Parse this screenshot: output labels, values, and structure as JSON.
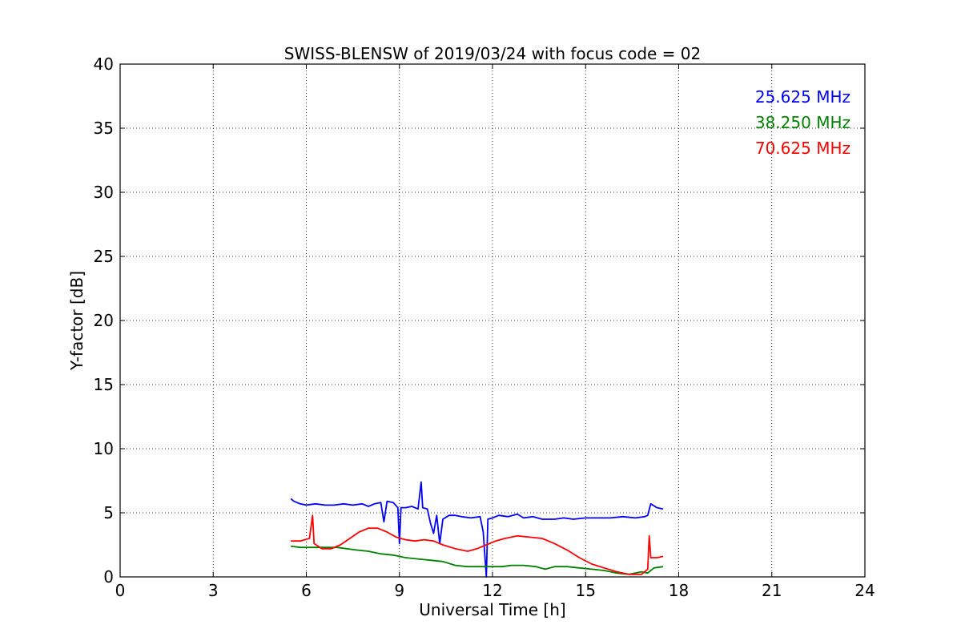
{
  "chart_data": {
    "type": "line",
    "title": "SWISS-BLENSW of 2019/03/24 with focus code = 02",
    "xlabel": "Universal Time [h]",
    "ylabel": "Y-factor [dB]",
    "xlim": [
      0,
      24
    ],
    "ylim": [
      0,
      40
    ],
    "xticks": [
      0,
      3,
      6,
      9,
      12,
      15,
      18,
      21,
      24
    ],
    "yticks": [
      0,
      5,
      10,
      15,
      20,
      25,
      30,
      35,
      40
    ],
    "xtick_labels": [
      "0",
      "3",
      "6",
      "9",
      "12",
      "15",
      "18",
      "21",
      "24"
    ],
    "ytick_labels": [
      "0",
      "5",
      "10",
      "15",
      "20",
      "25",
      "30",
      "35",
      "40"
    ],
    "grid": true,
    "legend_position": "top-right",
    "series": [
      {
        "name": "25.625 MHz",
        "color": "#0000ff",
        "points": [
          [
            5.5,
            6.1
          ],
          [
            5.6,
            5.9
          ],
          [
            5.8,
            5.7
          ],
          [
            6.0,
            5.6
          ],
          [
            6.3,
            5.7
          ],
          [
            6.6,
            5.6
          ],
          [
            6.9,
            5.6
          ],
          [
            7.2,
            5.7
          ],
          [
            7.5,
            5.6
          ],
          [
            7.8,
            5.7
          ],
          [
            8.0,
            5.5
          ],
          [
            8.2,
            5.7
          ],
          [
            8.4,
            5.8
          ],
          [
            8.5,
            4.3
          ],
          [
            8.6,
            5.9
          ],
          [
            8.8,
            5.8
          ],
          [
            8.95,
            5.4
          ],
          [
            9.0,
            2.6
          ],
          [
            9.05,
            5.4
          ],
          [
            9.2,
            5.4
          ],
          [
            9.4,
            5.5
          ],
          [
            9.6,
            5.3
          ],
          [
            9.7,
            7.4
          ],
          [
            9.75,
            5.4
          ],
          [
            9.9,
            5.3
          ],
          [
            10.0,
            4.2
          ],
          [
            10.1,
            3.4
          ],
          [
            10.2,
            4.8
          ],
          [
            10.3,
            2.6
          ],
          [
            10.4,
            4.5
          ],
          [
            10.6,
            4.8
          ],
          [
            10.8,
            4.8
          ],
          [
            11.0,
            4.7
          ],
          [
            11.3,
            4.6
          ],
          [
            11.6,
            4.7
          ],
          [
            11.7,
            3.5
          ],
          [
            11.8,
            0.0
          ],
          [
            11.85,
            4.5
          ],
          [
            12.0,
            4.6
          ],
          [
            12.2,
            4.8
          ],
          [
            12.5,
            4.7
          ],
          [
            12.8,
            4.9
          ],
          [
            13.0,
            4.6
          ],
          [
            13.3,
            4.7
          ],
          [
            13.6,
            4.5
          ],
          [
            14.0,
            4.5
          ],
          [
            14.3,
            4.6
          ],
          [
            14.6,
            4.5
          ],
          [
            15.0,
            4.6
          ],
          [
            15.4,
            4.6
          ],
          [
            15.8,
            4.6
          ],
          [
            16.2,
            4.7
          ],
          [
            16.6,
            4.6
          ],
          [
            16.9,
            4.7
          ],
          [
            17.0,
            4.8
          ],
          [
            17.1,
            5.7
          ],
          [
            17.3,
            5.4
          ],
          [
            17.5,
            5.3
          ]
        ]
      },
      {
        "name": "38.250 MHz",
        "color": "#008000",
        "points": [
          [
            5.5,
            2.4
          ],
          [
            5.8,
            2.3
          ],
          [
            6.1,
            2.3
          ],
          [
            6.4,
            2.3
          ],
          [
            6.7,
            2.3
          ],
          [
            7.0,
            2.3
          ],
          [
            7.3,
            2.2
          ],
          [
            7.6,
            2.1
          ],
          [
            8.0,
            2.0
          ],
          [
            8.4,
            1.8
          ],
          [
            8.8,
            1.7
          ],
          [
            9.2,
            1.5
          ],
          [
            9.6,
            1.4
          ],
          [
            10.0,
            1.3
          ],
          [
            10.4,
            1.2
          ],
          [
            10.8,
            0.9
          ],
          [
            11.2,
            0.8
          ],
          [
            11.6,
            0.8
          ],
          [
            12.0,
            0.8
          ],
          [
            12.3,
            0.8
          ],
          [
            12.6,
            0.9
          ],
          [
            13.0,
            0.9
          ],
          [
            13.4,
            0.8
          ],
          [
            13.7,
            0.6
          ],
          [
            14.0,
            0.8
          ],
          [
            14.4,
            0.8
          ],
          [
            14.8,
            0.7
          ],
          [
            15.2,
            0.6
          ],
          [
            15.6,
            0.5
          ],
          [
            16.0,
            0.3
          ],
          [
            16.4,
            0.2
          ],
          [
            16.8,
            0.4
          ],
          [
            17.0,
            0.3
          ],
          [
            17.2,
            0.7
          ],
          [
            17.5,
            0.8
          ]
        ]
      },
      {
        "name": "70.625 MHz",
        "color": "#ff0000",
        "points": [
          [
            5.5,
            2.8
          ],
          [
            5.8,
            2.8
          ],
          [
            6.1,
            3.0
          ],
          [
            6.2,
            4.8
          ],
          [
            6.25,
            2.6
          ],
          [
            6.5,
            2.2
          ],
          [
            6.8,
            2.2
          ],
          [
            7.1,
            2.5
          ],
          [
            7.4,
            3.0
          ],
          [
            7.7,
            3.5
          ],
          [
            8.0,
            3.8
          ],
          [
            8.3,
            3.8
          ],
          [
            8.6,
            3.5
          ],
          [
            8.9,
            3.1
          ],
          [
            9.2,
            2.9
          ],
          [
            9.5,
            2.8
          ],
          [
            9.8,
            2.9
          ],
          [
            10.1,
            2.8
          ],
          [
            10.4,
            2.5
          ],
          [
            10.8,
            2.2
          ],
          [
            11.2,
            2.0
          ],
          [
            11.5,
            2.2
          ],
          [
            11.8,
            2.5
          ],
          [
            12.1,
            2.8
          ],
          [
            12.4,
            3.0
          ],
          [
            12.8,
            3.2
          ],
          [
            13.2,
            3.1
          ],
          [
            13.6,
            3.0
          ],
          [
            14.0,
            2.6
          ],
          [
            14.4,
            2.1
          ],
          [
            14.8,
            1.5
          ],
          [
            15.2,
            1.0
          ],
          [
            15.6,
            0.7
          ],
          [
            16.0,
            0.4
          ],
          [
            16.4,
            0.2
          ],
          [
            16.8,
            0.2
          ],
          [
            17.0,
            0.6
          ],
          [
            17.05,
            3.2
          ],
          [
            17.1,
            1.5
          ],
          [
            17.3,
            1.5
          ],
          [
            17.5,
            1.6
          ]
        ]
      }
    ]
  }
}
